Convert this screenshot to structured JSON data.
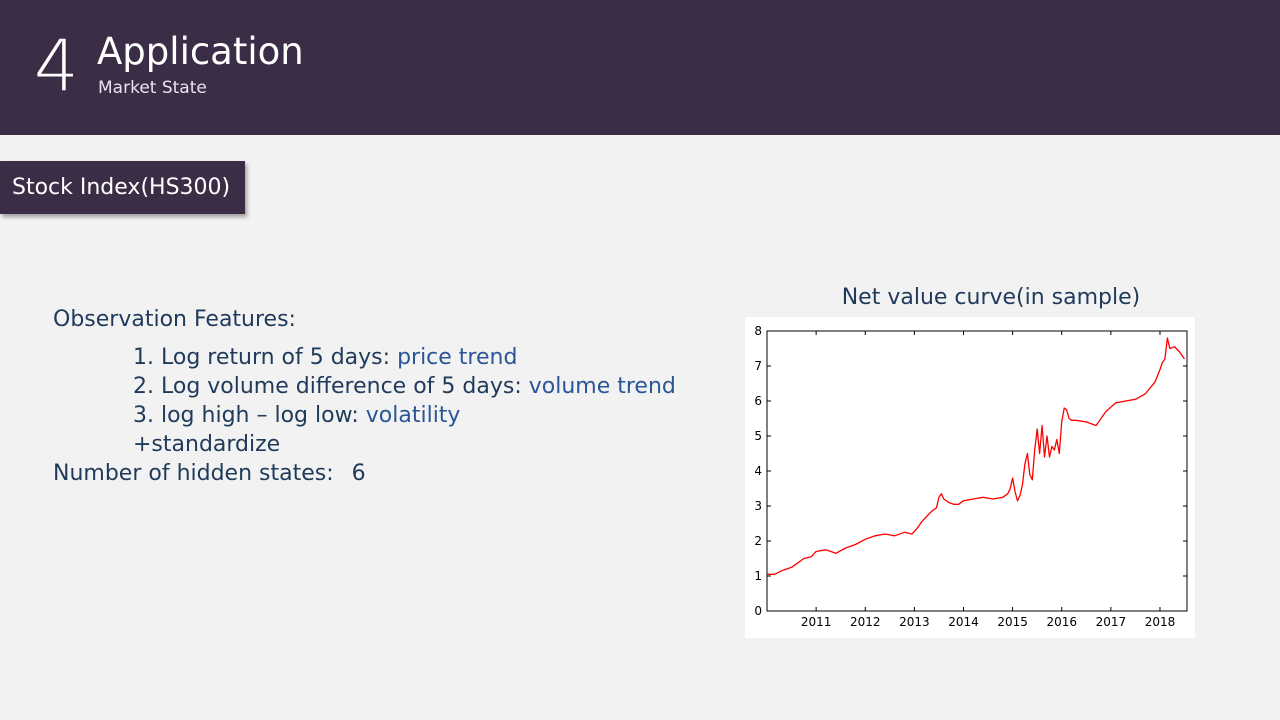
{
  "header": {
    "number": "4",
    "title": "Application",
    "subtitle": "Market State"
  },
  "tag_label": "Stock Index(HS300)",
  "observation": {
    "heading": "Observation Features:",
    "items": [
      {
        "prefix": "1. Log return of 5 days: ",
        "highlight": "price trend"
      },
      {
        "prefix": "2. Log volume difference of 5 days: ",
        "highlight": "volume trend"
      },
      {
        "prefix": "3. log high – log low: ",
        "highlight": "volatility"
      }
    ],
    "extra": "+standardize",
    "hidden_states_label": "Number of hidden states:",
    "hidden_states_value": "6"
  },
  "colors": {
    "header_bg": "#3b2d46",
    "text": "#1f3a5a",
    "highlight": "#2a5596",
    "series": "#ff0000"
  },
  "chart_data": {
    "type": "line",
    "title": "Net value curve(in sample)",
    "xlabel": "",
    "ylabel": "",
    "xlim": [
      2010.0,
      2018.55
    ],
    "ylim": [
      0,
      8
    ],
    "yticks": [
      0,
      1,
      2,
      3,
      4,
      5,
      6,
      7,
      8
    ],
    "xticks": [
      "2011",
      "2012",
      "2013",
      "2014",
      "2015",
      "2016",
      "2017",
      "2018"
    ],
    "grid": false,
    "series": [
      {
        "color": "#ff0000",
        "x": [
          2010.0,
          2010.15,
          2010.3,
          2010.5,
          2010.6,
          2010.75,
          2010.9,
          2011.0,
          2011.2,
          2011.4,
          2011.6,
          2011.8,
          2012.0,
          2012.2,
          2012.4,
          2012.6,
          2012.8,
          2012.95,
          2013.05,
          2013.15,
          2013.25,
          2013.35,
          2013.45,
          2013.5,
          2013.55,
          2013.6,
          2013.7,
          2013.8,
          2013.9,
          2014.0,
          2014.2,
          2014.4,
          2014.6,
          2014.8,
          2014.9,
          2014.95,
          2015.0,
          2015.05,
          2015.1,
          2015.15,
          2015.2,
          2015.25,
          2015.3,
          2015.35,
          2015.4,
          2015.45,
          2015.5,
          2015.55,
          2015.6,
          2015.65,
          2015.7,
          2015.75,
          2015.8,
          2015.85,
          2015.9,
          2015.95,
          2016.0,
          2016.05,
          2016.1,
          2016.15,
          2016.2,
          2016.3,
          2016.5,
          2016.7,
          2016.9,
          2017.1,
          2017.3,
          2017.5,
          2017.7,
          2017.9,
          2018.0,
          2018.05,
          2018.1,
          2018.15,
          2018.2,
          2018.3,
          2018.4,
          2018.5
        ],
        "y": [
          1.05,
          1.05,
          1.15,
          1.25,
          1.35,
          1.5,
          1.55,
          1.7,
          1.75,
          1.65,
          1.8,
          1.9,
          2.05,
          2.15,
          2.2,
          2.15,
          2.25,
          2.2,
          2.35,
          2.55,
          2.7,
          2.85,
          2.95,
          3.25,
          3.35,
          3.2,
          3.1,
          3.05,
          3.05,
          3.15,
          3.2,
          3.25,
          3.2,
          3.25,
          3.35,
          3.5,
          3.8,
          3.4,
          3.15,
          3.3,
          3.6,
          4.2,
          4.5,
          3.9,
          3.75,
          4.6,
          5.2,
          4.5,
          5.3,
          4.4,
          5.0,
          4.4,
          4.7,
          4.6,
          4.9,
          4.5,
          5.4,
          5.8,
          5.75,
          5.5,
          5.45,
          5.45,
          5.4,
          5.3,
          5.7,
          5.95,
          6.0,
          6.05,
          6.2,
          6.55,
          6.9,
          7.1,
          7.2,
          7.8,
          7.5,
          7.55,
          7.4,
          7.2
        ]
      }
    ]
  }
}
